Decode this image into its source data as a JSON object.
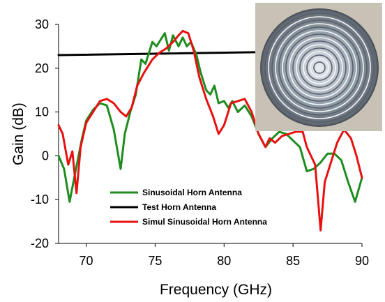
{
  "chart_data": {
    "type": "line",
    "title": "",
    "xlabel": "Frequency (GHz)",
    "ylabel": "Gain (dB)",
    "xlim": [
      68,
      90
    ],
    "ylim": [
      -20,
      30
    ],
    "x_ticks": [
      70,
      75,
      80,
      85,
      90
    ],
    "y_ticks": [
      -20,
      -10,
      0,
      10,
      20,
      30
    ],
    "grid": false,
    "legend_position": "bottom-center",
    "inset": "photo of a metallic disc with concentric sinusoidal corrugations",
    "series": [
      {
        "name": "Sinusoidal Horn Antenna",
        "color": "#1e8c1e",
        "points": [
          [
            68,
            0
          ],
          [
            68.4,
            -3
          ],
          [
            68.8,
            -10.5
          ],
          [
            69.2,
            -4
          ],
          [
            69.7,
            4
          ],
          [
            70,
            8
          ],
          [
            70.5,
            10.5
          ],
          [
            71,
            12
          ],
          [
            71.5,
            11.5
          ],
          [
            72,
            6
          ],
          [
            72.5,
            -3
          ],
          [
            72.8,
            5
          ],
          [
            73.2,
            10
          ],
          [
            73.6,
            14
          ],
          [
            74,
            22
          ],
          [
            74.3,
            21
          ],
          [
            74.8,
            26
          ],
          [
            75.1,
            25
          ],
          [
            75.4,
            26.5
          ],
          [
            75.7,
            28
          ],
          [
            76,
            24
          ],
          [
            76.3,
            27.5
          ],
          [
            76.7,
            25
          ],
          [
            77,
            27
          ],
          [
            77.3,
            25
          ],
          [
            77.6,
            26
          ],
          [
            78,
            23
          ],
          [
            78.3,
            19
          ],
          [
            78.7,
            15
          ],
          [
            79,
            14
          ],
          [
            79.3,
            16
          ],
          [
            79.6,
            12
          ],
          [
            80,
            12.5
          ],
          [
            80.3,
            11
          ],
          [
            80.6,
            12.5
          ],
          [
            81,
            10
          ],
          [
            81.5,
            11.5
          ],
          [
            82,
            9
          ],
          [
            82.5,
            5
          ],
          [
            83,
            2
          ],
          [
            83.5,
            4
          ],
          [
            84,
            5.5
          ],
          [
            84.5,
            5
          ],
          [
            85,
            3.5
          ],
          [
            85.5,
            2
          ],
          [
            86,
            -3.5
          ],
          [
            86.5,
            -3
          ],
          [
            87,
            -1.5
          ],
          [
            87.5,
            0.5
          ],
          [
            88,
            0.5
          ],
          [
            88.5,
            -1
          ],
          [
            89,
            -6
          ],
          [
            89.5,
            -10.5
          ],
          [
            90,
            -5
          ]
        ]
      },
      {
        "name": "Test Horn Antenna",
        "color": "#000000",
        "points": [
          [
            68,
            23
          ],
          [
            90,
            24
          ]
        ]
      },
      {
        "name": "Simul Sinusoidal Horn Antenna",
        "color": "#e81010",
        "points": [
          [
            68,
            7
          ],
          [
            68.3,
            5
          ],
          [
            68.7,
            -2
          ],
          [
            69,
            1
          ],
          [
            69.3,
            -8.5
          ],
          [
            69.6,
            2
          ],
          [
            70,
            7.5
          ],
          [
            70.5,
            10
          ],
          [
            71,
            12.5
          ],
          [
            71.5,
            13
          ],
          [
            72,
            12
          ],
          [
            72.5,
            10
          ],
          [
            72.9,
            9
          ],
          [
            73.3,
            11
          ],
          [
            73.7,
            16
          ],
          [
            74.2,
            19
          ],
          [
            74.8,
            22
          ],
          [
            75.3,
            23.5
          ],
          [
            75.8,
            24.5
          ],
          [
            76.3,
            26
          ],
          [
            76.7,
            27.5
          ],
          [
            77,
            28.5
          ],
          [
            77.4,
            28
          ],
          [
            77.8,
            24
          ],
          [
            78.2,
            18
          ],
          [
            78.7,
            13
          ],
          [
            79.2,
            9
          ],
          [
            79.6,
            5
          ],
          [
            80,
            7
          ],
          [
            80.5,
            12
          ],
          [
            81,
            12.5
          ],
          [
            81.5,
            13
          ],
          [
            82,
            10
          ],
          [
            82.5,
            5
          ],
          [
            83,
            2
          ],
          [
            83.3,
            4
          ],
          [
            83.7,
            3
          ],
          [
            84.2,
            4.5
          ],
          [
            84.7,
            5
          ],
          [
            85.2,
            5.5
          ],
          [
            85.7,
            5.5
          ],
          [
            86,
            2
          ],
          [
            86.3,
            0
          ],
          [
            86.6,
            -2
          ],
          [
            87,
            -17
          ],
          [
            87.3,
            -6
          ],
          [
            87.7,
            -2
          ],
          [
            88.2,
            3
          ],
          [
            88.7,
            6
          ],
          [
            89.2,
            4
          ],
          [
            89.6,
            0
          ],
          [
            90,
            -5
          ]
        ]
      }
    ]
  }
}
